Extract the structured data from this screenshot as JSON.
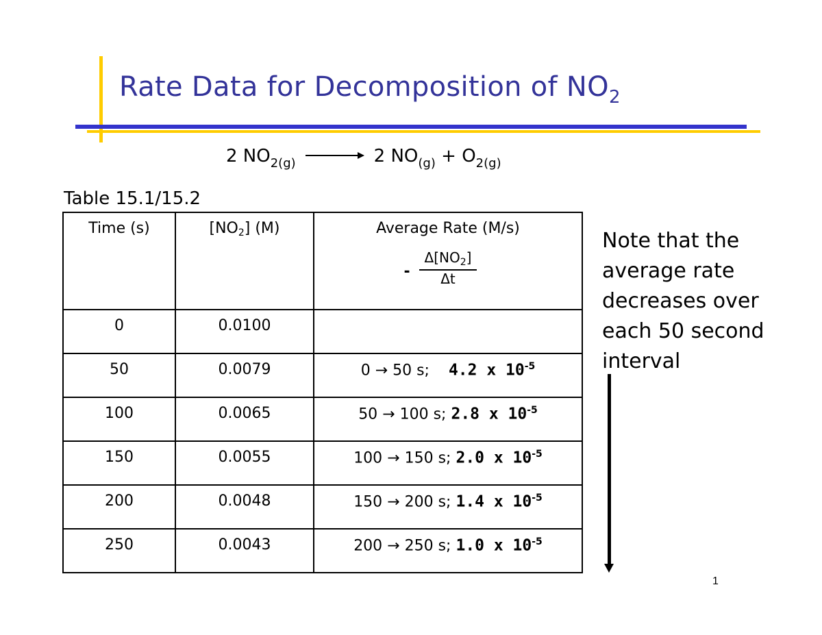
{
  "slide": {
    "title": "Rate Data for Decomposition of NO",
    "title_subscript": "2",
    "equation": {
      "reactant_coef": "2 NO",
      "reactant_sub": "2(g)",
      "product1": "2 NO",
      "product1_sub": "(g)",
      "plus": " + O",
      "product2_sub": "2(g)"
    },
    "table_label": "Table 15.1/15.2",
    "table": {
      "headers": {
        "time": "Time (s)",
        "conc_pre": "[NO",
        "conc_sub": "2",
        "conc_post": "] (M)",
        "rate": "Average Rate (M/s)",
        "rate_minus": "-",
        "rate_num_pre": "Δ[NO",
        "rate_num_sub": "2",
        "rate_num_post": "]",
        "rate_den": "Δt"
      },
      "rows": [
        {
          "time": "0",
          "conc": "0.0100",
          "interval": "",
          "value": "",
          "exp": ""
        },
        {
          "time": "50",
          "conc": "0.0079",
          "interval": "0 → 50 s;",
          "value": "4.2 x 10",
          "exp": "-5"
        },
        {
          "time": "100",
          "conc": "0.0065",
          "interval": "50 → 100 s;",
          "value": "2.8 x 10",
          "exp": "-5"
        },
        {
          "time": "150",
          "conc": "0.0055",
          "interval": "100 → 150 s;",
          "value": "2.0 x 10",
          "exp": "-5"
        },
        {
          "time": "200",
          "conc": "0.0048",
          "interval": "150 → 200 s;",
          "value": "1.4 x 10",
          "exp": "-5"
        },
        {
          "time": "250",
          "conc": "0.0043",
          "interval": "200 → 250 s;",
          "value": "1.0 x 10",
          "exp": "-5"
        }
      ]
    },
    "note": "Note that the average rate decreases over each 50 second interval",
    "page_number": "1",
    "colors": {
      "title": "#333399",
      "accent_blue": "#3333cc",
      "accent_yellow": "#ffcc00"
    }
  }
}
